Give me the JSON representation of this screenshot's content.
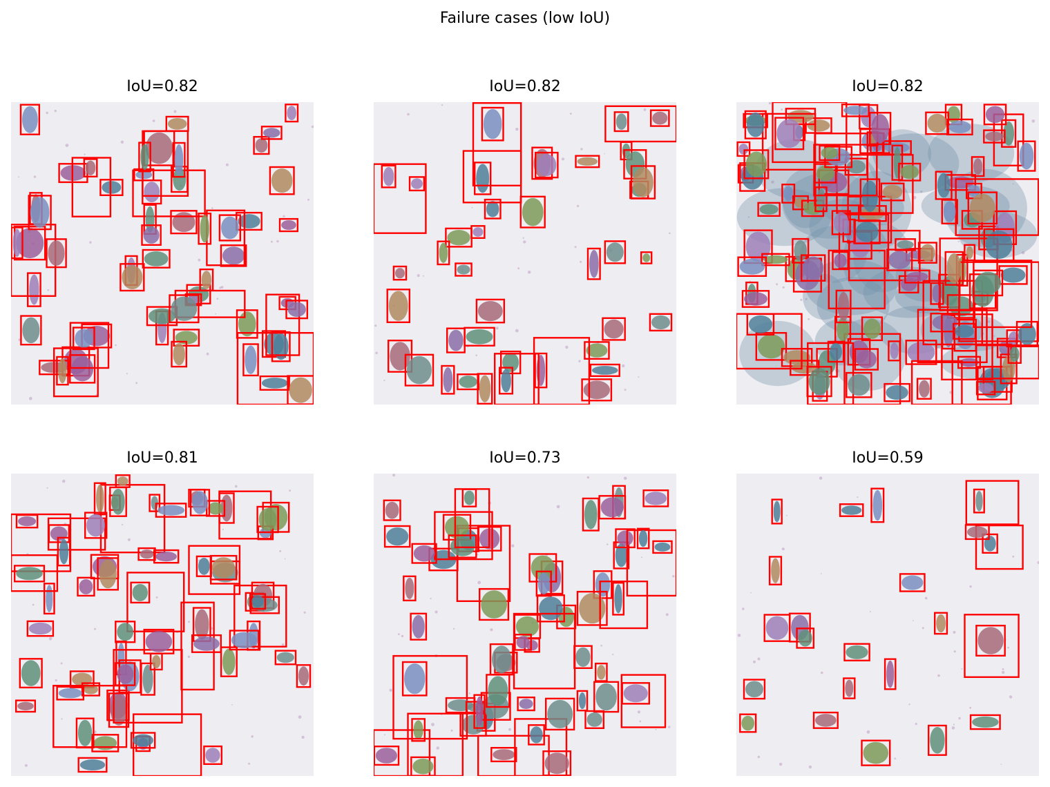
{
  "figure": {
    "title": "Failure cases (low IoU)"
  },
  "colors": {
    "box_stroke": "#ff0000",
    "slide_background": "#eeeef2",
    "cell_palette": [
      "#7a8fbf",
      "#9a5f9b",
      "#5f8f7a",
      "#b08a60",
      "#8a6fa8",
      "#6e8c8c",
      "#a86a7a",
      "#7d9a5a",
      "#4f7f9a",
      "#9d7fb8"
    ]
  },
  "panels": [
    {
      "title": "IoU=0.82",
      "iou": 0.82,
      "image": "blood smear with colored cell masks and red bounding boxes"
    },
    {
      "title": "IoU=0.82",
      "iou": 0.82,
      "image": "blood smear with colored cell masks and red bounding boxes"
    },
    {
      "title": "IoU=0.82",
      "iou": 0.82,
      "image": "dense cluster of cells with colored masks and many red bounding boxes"
    },
    {
      "title": "IoU=0.81",
      "iou": 0.81,
      "image": "blood smear with colored cell masks and red bounding boxes"
    },
    {
      "title": "IoU=0.73",
      "iou": 0.73,
      "image": "blood smear with colored cell masks and red bounding boxes"
    },
    {
      "title": "IoU=0.59",
      "iou": 0.59,
      "image": "sparse blood smear with few cell masks and red bounding boxes"
    }
  ]
}
